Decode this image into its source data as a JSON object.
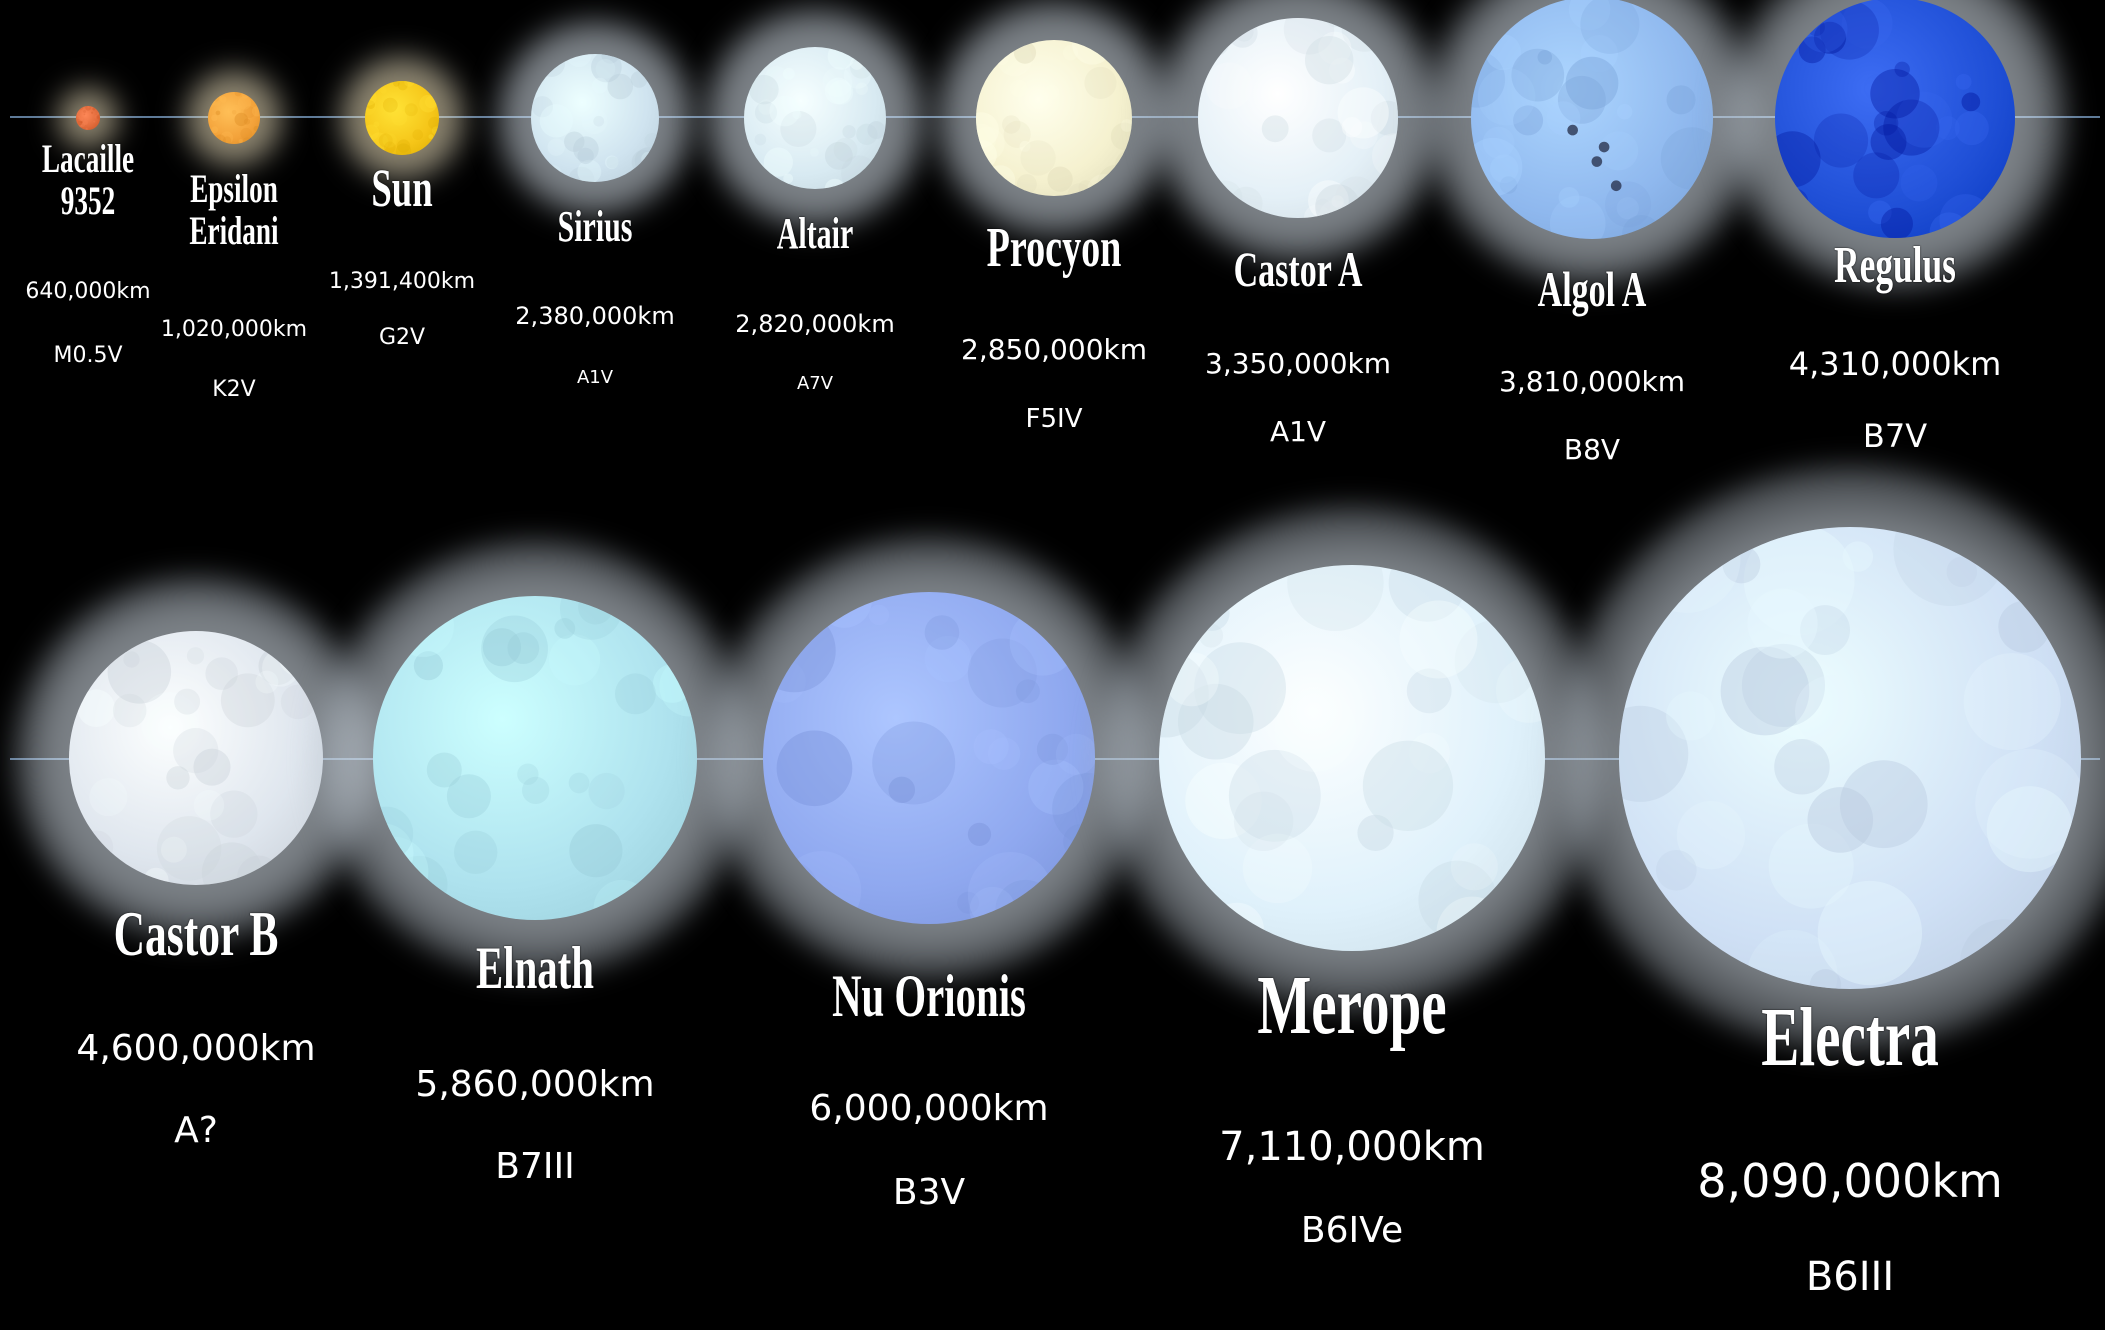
{
  "stars": [
    {
      "id": "lacaille-9352",
      "name": "Lacaille\n9352",
      "diameter": "640,000km",
      "spectral_class": "M0.5V",
      "color": "#e06a3a"
    },
    {
      "id": "epsilon-eridani",
      "name": "Epsilon\nEridani",
      "diameter": "1,020,000km",
      "spectral_class": "K2V",
      "color": "#f3a23a"
    },
    {
      "id": "sun",
      "name": "Sun",
      "diameter": "1,391,400km",
      "spectral_class": "G2V",
      "color": "#f5c518"
    },
    {
      "id": "sirius",
      "name": "Sirius",
      "diameter": "2,380,000km",
      "spectral_class": "A1V",
      "color": "#cfe3ef"
    },
    {
      "id": "altair",
      "name": "Altair",
      "diameter": "2,820,000km",
      "spectral_class": "A7V",
      "color": "#d8eaf2"
    },
    {
      "id": "procyon",
      "name": "Procyon",
      "diameter": "2,850,000km",
      "spectral_class": "F5IV",
      "color": "#f5f1cf"
    },
    {
      "id": "castor-a",
      "name": "Castor A",
      "diameter": "3,350,000km",
      "spectral_class": "A1V",
      "color": "#e4f0f7"
    },
    {
      "id": "algol-a",
      "name": "Algol A",
      "diameter": "3,810,000km",
      "spectral_class": "B8V",
      "color": "#8fb8ee"
    },
    {
      "id": "regulus",
      "name": "Regulus",
      "diameter": "4,310,000km",
      "spectral_class": "B7V",
      "color": "#1f4fd6"
    },
    {
      "id": "castor-b",
      "name": "Castor B",
      "diameter": "4,600,000km",
      "spectral_class": "A?",
      "color": "#dfe6ee"
    },
    {
      "id": "elnath",
      "name": "Elnath",
      "diameter": "5,860,000km",
      "spectral_class": "B7III",
      "color": "#aee2ee"
    },
    {
      "id": "nu-orionis",
      "name": "Nu Orionis",
      "diameter": "6,000,000km",
      "spectral_class": "B3V",
      "color": "#8fa8ef"
    },
    {
      "id": "merope",
      "name": "Merope",
      "diameter": "7,110,000km",
      "spectral_class": "B6IVe",
      "color": "#dff1fb"
    },
    {
      "id": "electra",
      "name": "Electra",
      "diameter": "8,090,000km",
      "spectral_class": "B6III",
      "color": "#cfe0f5"
    }
  ]
}
